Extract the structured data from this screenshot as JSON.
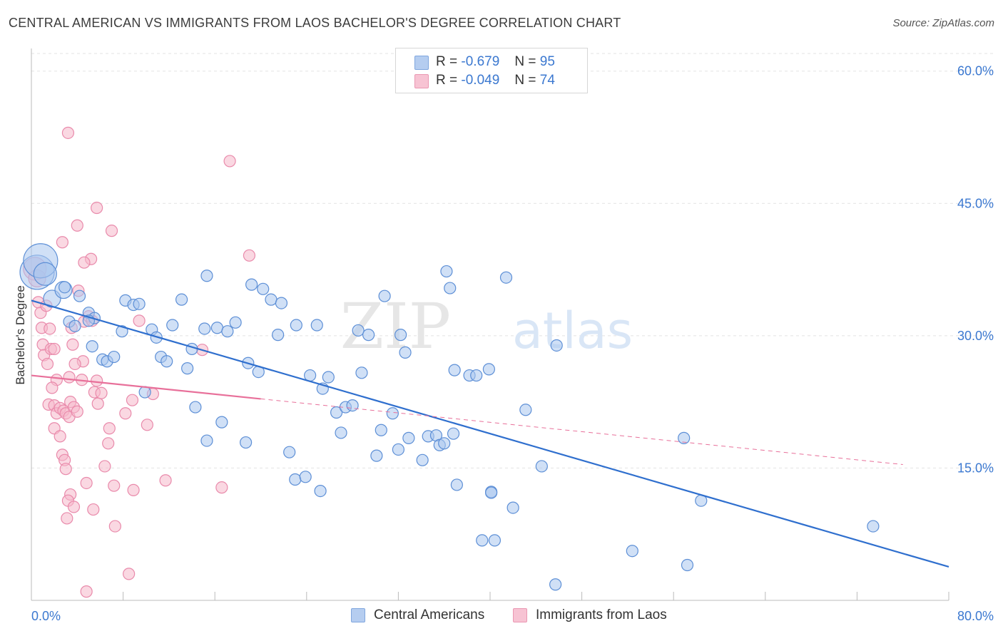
{
  "title": "CENTRAL AMERICAN VS IMMIGRANTS FROM LAOS BACHELOR'S DEGREE CORRELATION CHART",
  "source": "Source: ZipAtlas.com",
  "watermark": {
    "zip": "ZIP",
    "atlas": "atlas"
  },
  "stats": [
    {
      "r_label": "R =",
      "r": "-0.679",
      "n_label": "N =",
      "n": "95"
    },
    {
      "r_label": "R =",
      "r": "-0.049",
      "n_label": "N =",
      "n": "74"
    }
  ],
  "legend": [
    "Central Americans",
    "Immigrants from Laos"
  ],
  "colors": {
    "blue_fill": "#a9c6ee",
    "blue_stroke": "#5d8fd6",
    "blue_line": "#2f6fce",
    "pink_fill": "#f5b8cb",
    "pink_stroke": "#e98aab",
    "pink_line": "#e8709a",
    "tick_label": "#3b78d0",
    "grid": "#e3e3e3"
  },
  "chart_data": {
    "type": "scatter",
    "title": "CENTRAL AMERICAN VS IMMIGRANTS FROM LAOS BACHELOR'S DEGREE CORRELATION CHART",
    "ylabel": "Bachelor's Degree",
    "xlabel": "",
    "xlim": [
      0,
      80
    ],
    "ylim": [
      0,
      62
    ],
    "x_tick_labels": [
      "0.0%",
      "80.0%"
    ],
    "y_ticks": [
      15,
      30,
      45,
      60
    ],
    "y_tick_labels": [
      "15.0%",
      "30.0%",
      "45.0%",
      "60.0%"
    ],
    "grid": true,
    "legend_position": "bottom-center",
    "series": [
      {
        "name": "Central Americans",
        "r": -0.679,
        "n": 95,
        "trend": {
          "x": [
            0,
            80
          ],
          "y": [
            34.0,
            3.8
          ],
          "dashed_from": null
        },
        "points": [
          [
            0.5,
            37.2,
            3
          ],
          [
            0.8,
            38.5,
            3
          ],
          [
            1.2,
            37.0,
            2
          ],
          [
            1.8,
            34.2,
            1.5
          ],
          [
            2.8,
            35.2,
            1.5
          ],
          [
            2.9,
            35.5,
            1
          ],
          [
            4.2,
            34.5,
            1
          ],
          [
            5.0,
            32.6,
            1
          ],
          [
            5.5,
            32.0,
            1
          ],
          [
            5.0,
            31.7,
            1
          ],
          [
            3.3,
            31.6,
            1
          ],
          [
            3.8,
            31.1,
            1
          ],
          [
            7.9,
            30.5,
            1
          ],
          [
            8.2,
            34.0,
            1
          ],
          [
            8.9,
            33.5,
            1
          ],
          [
            9.4,
            33.6,
            1
          ],
          [
            10.5,
            30.7,
            1
          ],
          [
            10.9,
            29.8,
            1
          ],
          [
            12.3,
            31.2,
            1
          ],
          [
            13.1,
            34.1,
            1
          ],
          [
            15.3,
            36.8,
            1
          ],
          [
            15.1,
            30.8,
            1
          ],
          [
            16.2,
            30.9,
            1
          ],
          [
            17.1,
            30.5,
            1
          ],
          [
            17.8,
            31.5,
            1
          ],
          [
            19.2,
            35.8,
            1
          ],
          [
            20.2,
            35.3,
            1
          ],
          [
            20.9,
            34.1,
            1
          ],
          [
            21.8,
            33.7,
            1
          ],
          [
            21.5,
            30.1,
            1
          ],
          [
            23.1,
            31.2,
            1
          ],
          [
            24.9,
            31.2,
            1
          ],
          [
            28.5,
            30.6,
            1
          ],
          [
            29.4,
            30.1,
            1
          ],
          [
            30.8,
            34.5,
            1
          ],
          [
            32.2,
            30.1,
            1
          ],
          [
            36.2,
            37.3,
            1
          ],
          [
            36.5,
            35.4,
            1
          ],
          [
            41.4,
            36.6,
            1
          ],
          [
            45.8,
            28.9,
            1
          ],
          [
            5.3,
            28.8,
            1
          ],
          [
            6.2,
            27.3,
            1
          ],
          [
            6.6,
            27.1,
            1
          ],
          [
            7.2,
            27.6,
            1
          ],
          [
            11.3,
            27.6,
            1
          ],
          [
            11.8,
            27.1,
            1
          ],
          [
            13.6,
            26.3,
            1
          ],
          [
            14.0,
            28.5,
            1
          ],
          [
            18.9,
            26.9,
            1
          ],
          [
            19.8,
            25.9,
            1
          ],
          [
            24.3,
            25.5,
            1
          ],
          [
            25.4,
            24.0,
            1
          ],
          [
            25.9,
            25.3,
            1
          ],
          [
            28.8,
            25.8,
            1
          ],
          [
            32.6,
            28.1,
            1
          ],
          [
            36.9,
            26.1,
            1
          ],
          [
            38.2,
            25.5,
            1
          ],
          [
            38.8,
            25.5,
            1
          ],
          [
            39.9,
            26.2,
            1
          ],
          [
            9.9,
            23.6,
            1
          ],
          [
            14.3,
            21.9,
            1
          ],
          [
            16.6,
            20.2,
            1
          ],
          [
            26.6,
            21.3,
            1
          ],
          [
            27.4,
            21.9,
            1
          ],
          [
            28.0,
            22.1,
            1
          ],
          [
            31.5,
            21.2,
            1
          ],
          [
            43.1,
            21.6,
            1
          ],
          [
            27.0,
            19.0,
            1
          ],
          [
            30.5,
            19.3,
            1
          ],
          [
            32.9,
            18.4,
            1
          ],
          [
            34.6,
            18.6,
            1
          ],
          [
            35.3,
            18.7,
            1
          ],
          [
            35.6,
            17.6,
            1
          ],
          [
            36.0,
            17.8,
            1
          ],
          [
            36.8,
            18.9,
            1
          ],
          [
            56.9,
            18.4,
            1
          ],
          [
            15.3,
            18.1,
            1
          ],
          [
            18.7,
            17.9,
            1
          ],
          [
            22.5,
            16.8,
            1
          ],
          [
            30.1,
            16.4,
            1
          ],
          [
            32.0,
            17.1,
            1
          ],
          [
            34.1,
            15.9,
            1
          ],
          [
            23.0,
            13.7,
            1
          ],
          [
            23.9,
            14.0,
            1
          ],
          [
            25.2,
            12.4,
            1
          ],
          [
            37.1,
            13.1,
            1
          ],
          [
            40.1,
            12.3,
            1
          ],
          [
            40.1,
            12.2,
            1
          ],
          [
            44.5,
            15.2,
            1
          ],
          [
            42.0,
            10.5,
            1
          ],
          [
            58.4,
            11.3,
            1
          ],
          [
            39.3,
            6.8,
            1
          ],
          [
            40.4,
            6.8,
            1
          ],
          [
            52.4,
            5.6,
            1
          ],
          [
            57.2,
            4.0,
            1
          ],
          [
            73.4,
            8.4,
            1
          ],
          [
            45.7,
            1.8,
            1
          ]
        ]
      },
      {
        "name": "Immigrants from Laos",
        "r": -0.049,
        "n": 74,
        "trend": {
          "x": [
            0,
            76
          ],
          "y": [
            25.5,
            15.4
          ],
          "dashed_from": 20
        },
        "points": [
          [
            0.3,
            37.6,
            2
          ],
          [
            0.5,
            36.5,
            1.5
          ],
          [
            0.6,
            33.8,
            1
          ],
          [
            0.8,
            32.6,
            1
          ],
          [
            0.9,
            30.9,
            1
          ],
          [
            1.0,
            29.0,
            1
          ],
          [
            1.1,
            27.8,
            1
          ],
          [
            1.4,
            26.8,
            1
          ],
          [
            1.6,
            30.8,
            1
          ],
          [
            1.7,
            28.5,
            1
          ],
          [
            2.0,
            28.5,
            1
          ],
          [
            2.2,
            25.0,
            1
          ],
          [
            1.8,
            24.1,
            1
          ],
          [
            3.3,
            25.3,
            1
          ],
          [
            3.5,
            30.9,
            1
          ],
          [
            3.6,
            29.0,
            1
          ],
          [
            4.6,
            31.6,
            1
          ],
          [
            5.0,
            32.2,
            1
          ],
          [
            5.3,
            31.7,
            1
          ],
          [
            4.5,
            27.1,
            1
          ],
          [
            3.8,
            26.8,
            1
          ],
          [
            4.4,
            25.0,
            1
          ],
          [
            5.5,
            23.6,
            1
          ],
          [
            5.7,
            24.9,
            1
          ],
          [
            5.8,
            22.3,
            1
          ],
          [
            6.1,
            23.5,
            1
          ],
          [
            8.8,
            22.7,
            1
          ],
          [
            9.4,
            31.7,
            1
          ],
          [
            10.6,
            23.4,
            1
          ],
          [
            3.2,
            53.0,
            1
          ],
          [
            5.7,
            44.5,
            1
          ],
          [
            4.0,
            42.5,
            1
          ],
          [
            7.0,
            41.9,
            1
          ],
          [
            2.7,
            40.6,
            1
          ],
          [
            5.2,
            38.7,
            1
          ],
          [
            4.6,
            38.3,
            1
          ],
          [
            4.1,
            35.1,
            1
          ],
          [
            17.3,
            49.8,
            1
          ],
          [
            19.0,
            39.1,
            1
          ],
          [
            14.9,
            28.4,
            1
          ],
          [
            1.5,
            22.2,
            1
          ],
          [
            2.0,
            22.1,
            1
          ],
          [
            2.2,
            21.2,
            1
          ],
          [
            2.5,
            21.8,
            1
          ],
          [
            2.8,
            21.5,
            1
          ],
          [
            3.0,
            21.2,
            1
          ],
          [
            3.3,
            20.8,
            1
          ],
          [
            3.4,
            22.5,
            1
          ],
          [
            3.7,
            21.9,
            1
          ],
          [
            4.0,
            21.4,
            1
          ],
          [
            2.0,
            19.5,
            1
          ],
          [
            2.5,
            18.6,
            1
          ],
          [
            6.8,
            19.5,
            1
          ],
          [
            8.2,
            21.2,
            1
          ],
          [
            10.1,
            19.9,
            1
          ],
          [
            6.7,
            17.8,
            1
          ],
          [
            2.7,
            16.5,
            1
          ],
          [
            2.9,
            15.9,
            1
          ],
          [
            3.0,
            14.9,
            1
          ],
          [
            6.4,
            15.2,
            1
          ],
          [
            4.8,
            13.3,
            1
          ],
          [
            7.2,
            13.0,
            1
          ],
          [
            8.9,
            12.5,
            1
          ],
          [
            11.7,
            13.6,
            1
          ],
          [
            16.6,
            12.8,
            1
          ],
          [
            3.4,
            12.0,
            1
          ],
          [
            3.2,
            11.3,
            1
          ],
          [
            3.7,
            10.6,
            1
          ],
          [
            5.4,
            10.3,
            1
          ],
          [
            3.1,
            9.3,
            1
          ],
          [
            7.3,
            8.4,
            1
          ],
          [
            8.5,
            3.0,
            1
          ],
          [
            4.8,
            1.0,
            1
          ],
          [
            1.3,
            33.4,
            1
          ]
        ]
      }
    ]
  }
}
